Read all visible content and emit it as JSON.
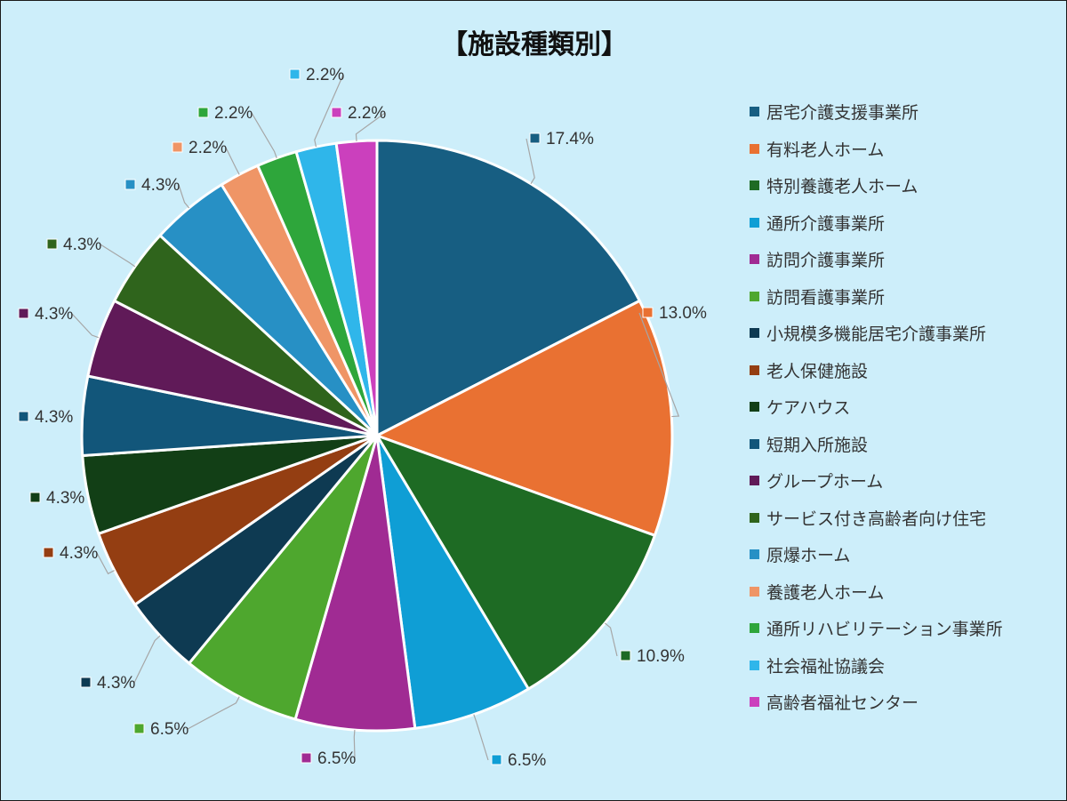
{
  "chart_data": {
    "type": "pie",
    "title": "【施設種類別】",
    "legend_position": "right",
    "slices": [
      {
        "label": "居宅介護支援事業所",
        "value": 17.4,
        "value_label": "17.4%",
        "color": "#175e82"
      },
      {
        "label": "有料老人ホーム",
        "value": 13.0,
        "value_label": "13.0%",
        "color": "#e97132"
      },
      {
        "label": "特別養護老人ホーム",
        "value": 10.9,
        "value_label": "10.9%",
        "color": "#1e6b24"
      },
      {
        "label": "通所介護事業所",
        "value": 6.5,
        "value_label": "6.5%",
        "color": "#0f9ed5"
      },
      {
        "label": "訪問介護事業所",
        "value": 6.5,
        "value_label": "6.5%",
        "color": "#a02b93"
      },
      {
        "label": "訪問看護事業所",
        "value": 6.5,
        "value_label": "6.5%",
        "color": "#4ea72e"
      },
      {
        "label": "小規模多機能居宅介護事業所",
        "value": 4.3,
        "value_label": "4.3%",
        "color": "#0e3a52"
      },
      {
        "label": "老人保健施設",
        "value": 4.3,
        "value_label": "4.3%",
        "color": "#943e12"
      },
      {
        "label": "ケアハウス",
        "value": 4.3,
        "value_label": "4.3%",
        "color": "#123f16"
      },
      {
        "label": "短期入所施設",
        "value": 4.3,
        "value_label": "4.3%",
        "color": "#12567a"
      },
      {
        "label": "グループホーム",
        "value": 4.3,
        "value_label": "4.3%",
        "color": "#601a58"
      },
      {
        "label": "サービス付き高齢者向け住宅",
        "value": 4.3,
        "value_label": "4.3%",
        "color": "#2f641c"
      },
      {
        "label": "原爆ホーム",
        "value": 4.3,
        "value_label": "4.3%",
        "color": "#2790c5"
      },
      {
        "label": "養護老人ホーム",
        "value": 2.2,
        "value_label": "2.2%",
        "color": "#ef9566"
      },
      {
        "label": "通所リハビリテーション事業所",
        "value": 2.2,
        "value_label": "2.2%",
        "color": "#2ea63b"
      },
      {
        "label": "社会福祉協議会",
        "value": 2.2,
        "value_label": "2.2%",
        "color": "#2fb6ea"
      },
      {
        "label": "高齢者福祉センター",
        "value": 2.2,
        "value_label": "2.2%",
        "color": "#cb40bd"
      }
    ]
  }
}
